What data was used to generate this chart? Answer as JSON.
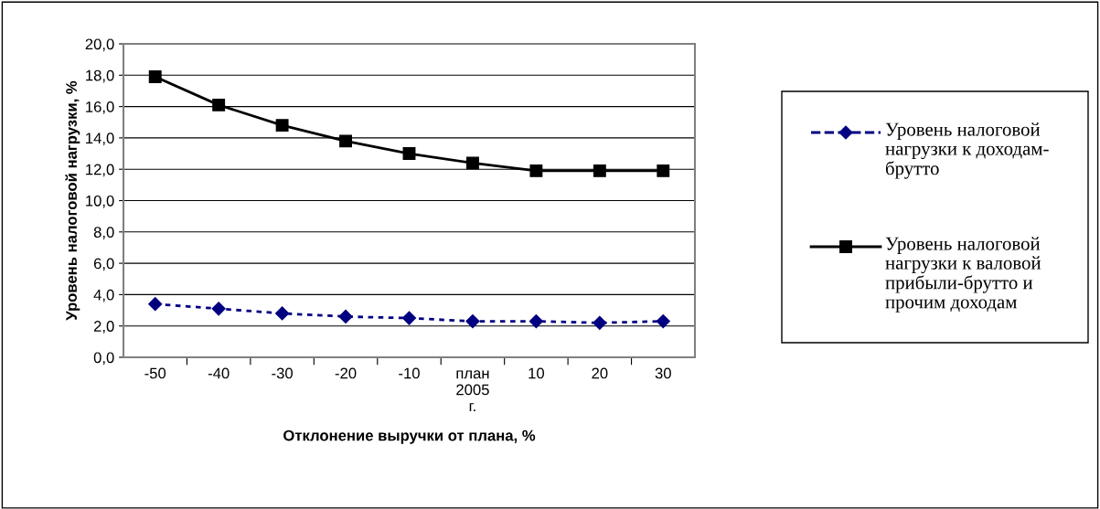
{
  "chart_data": {
    "type": "line",
    "xlabel": "Отклонение выручки от плана, %",
    "ylabel": "Уровень налоговой нагрузки, %",
    "categories": [
      "-50",
      "-40",
      "-30",
      "-20",
      "-10",
      "план\n2005\nг.",
      "10",
      "20",
      "30"
    ],
    "series": [
      {
        "name": "Уровень налоговой нагрузки к доходам-брутто",
        "color": "#000080",
        "marker": "diamond",
        "line_style": "dotted",
        "values": [
          3.4,
          3.1,
          2.8,
          2.6,
          2.5,
          2.3,
          2.3,
          2.2,
          2.3
        ]
      },
      {
        "name": "Уровень налоговой нагрузки к валовой прибыли-брутто и прочим доходам",
        "color": "#000000",
        "marker": "square",
        "line_style": "solid",
        "values": [
          17.9,
          16.1,
          14.8,
          13.8,
          13.0,
          12.4,
          11.9,
          11.9,
          11.9
        ]
      }
    ],
    "ylim": [
      0,
      20
    ],
    "yticks": [
      {
        "value": 0,
        "label": "0,0"
      },
      {
        "value": 2,
        "label": "2,0"
      },
      {
        "value": 4,
        "label": "4,0"
      },
      {
        "value": 6,
        "label": "6,0"
      },
      {
        "value": 8,
        "label": "8,0"
      },
      {
        "value": 10,
        "label": "10,0"
      },
      {
        "value": 12,
        "label": "12,0"
      },
      {
        "value": 14,
        "label": "14,0"
      },
      {
        "value": 16,
        "label": "16,0"
      },
      {
        "value": 18,
        "label": "18,0"
      },
      {
        "value": 20,
        "label": "20,0"
      }
    ],
    "grid": "y",
    "legend": "right"
  }
}
